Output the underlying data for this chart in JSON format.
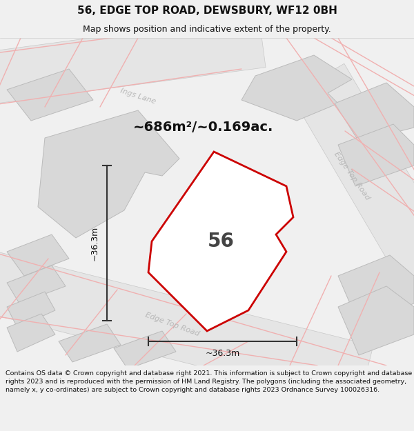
{
  "title": "56, EDGE TOP ROAD, DEWSBURY, WF12 0BH",
  "subtitle": "Map shows position and indicative extent of the property.",
  "area_label": "~686m²/~0.169ac.",
  "property_number": "56",
  "dim_horizontal": "~36.3m",
  "dim_vertical": "~36.3m",
  "road_label_top": "Ings Lane",
  "road_label_right": "Edge Top Road",
  "road_label_bottom": "Edge Top Road",
  "footer_text": "Contains OS data © Crown copyright and database right 2021. This information is subject to Crown copyright and database rights 2023 and is reproduced with the permission of HM Land Registry. The polygons (including the associated geometry, namely x, y co-ordinates) are subject to Crown copyright and database rights 2023 Ordnance Survey 100026316.",
  "bg_color": "#f0f0f0",
  "map_bg": "#f8f8f8",
  "road_fill": "#e2e2e2",
  "road_stroke": "#c8c8c8",
  "bldg_fill": "#d8d8d8",
  "bldg_stroke": "#bbbbbb",
  "highlight_stroke": "#cc0000",
  "street_lines_color": "#f0b0b0",
  "dim_line_color": "#333333",
  "text_color": "#111111",
  "road_text_color": "#b8b8b8",
  "fig_width": 6.0,
  "fig_height": 6.25
}
